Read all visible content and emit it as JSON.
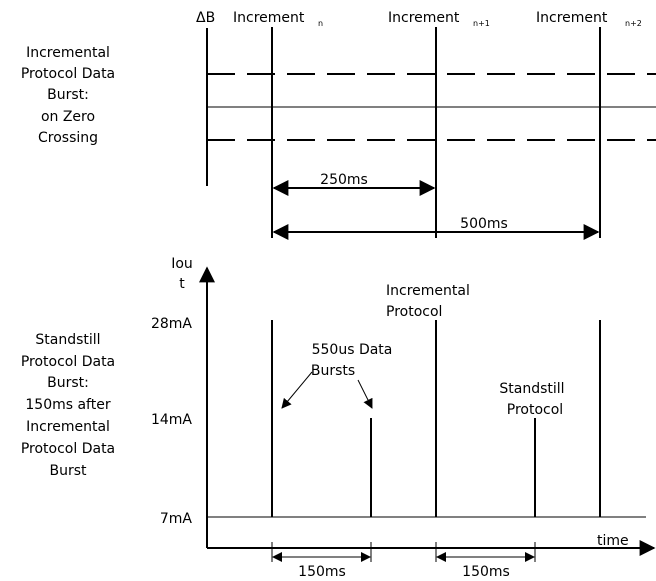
{
  "top": {
    "delta_b": "ΔB",
    "increments": [
      {
        "label": "Increment",
        "sub": "n"
      },
      {
        "label": "Increment",
        "sub": "n+1"
      },
      {
        "label": "Increment",
        "sub": "n+2"
      }
    ],
    "left_label": [
      "Incremental",
      "Protocol Data",
      "Burst:",
      "on Zero",
      "Crossing"
    ],
    "dim_250": "250ms",
    "dim_500": "500ms"
  },
  "bottom": {
    "y_axis_label": [
      "Iou",
      "t"
    ],
    "y_ticks": [
      "28mA",
      "14mA",
      "7mA"
    ],
    "x_axis_label": "time",
    "left_label": [
      "Standstill",
      "Protocol Data",
      "Burst:",
      "150ms after",
      "Incremental",
      "Protocol Data",
      "Burst"
    ],
    "incremental_label": [
      "Incremental",
      "Protocol"
    ],
    "bursts_label": [
      "550us Data",
      "Bursts"
    ],
    "standstill_label": [
      "Standstill",
      "Protocol"
    ],
    "dim_150_a": "150ms",
    "dim_150_b": "150ms"
  }
}
